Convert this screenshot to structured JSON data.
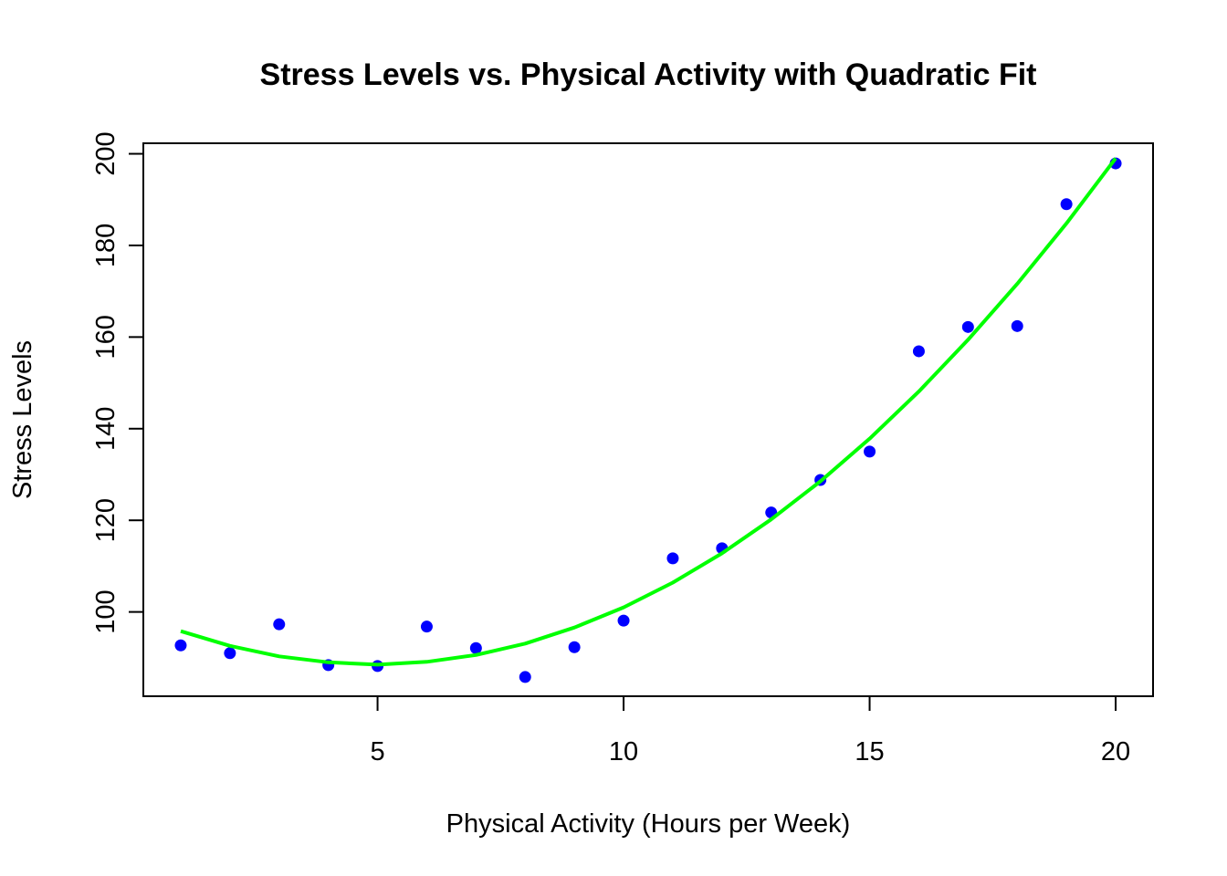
{
  "chart_data": {
    "type": "scatter",
    "title": "Stress Levels vs. Physical Activity with Quadratic Fit",
    "xlabel": "Physical Activity (Hours per Week)",
    "ylabel": "Stress Levels",
    "xlim": [
      0.24,
      20.76
    ],
    "ylim": [
      81.6,
      202.3
    ],
    "x_ticks": [
      5,
      10,
      15,
      20
    ],
    "y_ticks": [
      100,
      120,
      140,
      160,
      180,
      200
    ],
    "grid": false,
    "legend": "none",
    "series": [
      {
        "kind": "points",
        "color": "#0000FF",
        "x": [
          1,
          2,
          3,
          4,
          5,
          6,
          7,
          8,
          9,
          10,
          11,
          12,
          13,
          14,
          15,
          16,
          17,
          18,
          19,
          20
        ],
        "y": [
          92.7,
          91.0,
          97.3,
          88.4,
          88.2,
          96.8,
          92.1,
          85.8,
          92.3,
          98.1,
          111.7,
          113.9,
          121.7,
          128.8,
          135.0,
          156.9,
          162.2,
          162.4,
          189.0,
          197.9
        ]
      },
      {
        "kind": "curve",
        "color": "#00FF00",
        "x": [
          1,
          2,
          3,
          4,
          5,
          6,
          7,
          8,
          9,
          10,
          11,
          12,
          13,
          14,
          15,
          16,
          17,
          18,
          19,
          20
        ],
        "y": [
          95.8,
          92.6,
          90.3,
          89.0,
          88.5,
          89.1,
          90.6,
          93.1,
          96.6,
          101.0,
          106.4,
          112.8,
          120.2,
          128.5,
          137.8,
          148.1,
          159.4,
          171.6,
          184.8,
          199.0
        ]
      }
    ]
  }
}
